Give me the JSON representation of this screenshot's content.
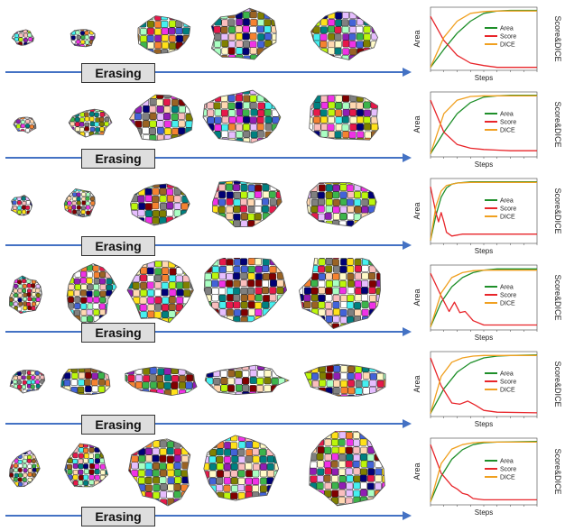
{
  "label_text": "Erasing",
  "colors": {
    "area": "#1f8f2a",
    "score": "#e8252a",
    "dice": "#f0a020",
    "arrow": "#4472c4",
    "blob_palette": [
      "#e6194b",
      "#3cb44b",
      "#ffe119",
      "#4363d8",
      "#f58231",
      "#911eb4",
      "#46f0f0",
      "#f032e6",
      "#bcf60c",
      "#fabebe",
      "#008080",
      "#e6beff",
      "#9a6324",
      "#fffac8",
      "#800000",
      "#aaffc3",
      "#808000",
      "#ffd8b1",
      "#000075",
      "#808080",
      "#ffffff"
    ]
  },
  "chart_labels": {
    "xlabel": "Steps",
    "ylabel_left": "Area",
    "ylabel_right": "Score&DICE",
    "legend": [
      "Area",
      "Score",
      "DICE"
    ]
  },
  "chart_data": [
    {
      "type": "line",
      "xlabel": "Steps",
      "ylabel": "Area",
      "y2label": "Score&DICE",
      "xlim": [
        0,
        2000
      ],
      "y2lim": [
        0,
        1
      ],
      "legend_position": "center-right",
      "series": [
        {
          "name": "Area",
          "x": [
            0,
            250,
            500,
            750,
            1000,
            1250,
            1500,
            2000
          ],
          "values": [
            0.05,
            0.35,
            0.62,
            0.82,
            0.95,
            0.99,
            1.0,
            1.0
          ]
        },
        {
          "name": "Score",
          "x": [
            0,
            250,
            500,
            750,
            1000,
            1250,
            1500,
            2000
          ],
          "values": [
            0.9,
            0.5,
            0.25,
            0.12,
            0.08,
            0.05,
            0.05,
            0.05
          ]
        },
        {
          "name": "DICE",
          "x": [
            0,
            250,
            500,
            750,
            1000,
            1250,
            1500,
            2000
          ],
          "values": [
            0.05,
            0.55,
            0.82,
            0.95,
            0.98,
            0.99,
            0.99,
            0.99
          ]
        }
      ]
    },
    {
      "type": "line",
      "xlabel": "Steps",
      "ylabel": "Area",
      "y2label": "Score&DICE",
      "xlim": [
        0,
        2000
      ],
      "y2lim": [
        0,
        1
      ],
      "legend_position": "center-right",
      "series": [
        {
          "name": "Area",
          "x": [
            0,
            250,
            500,
            750,
            1000,
            1250,
            1500,
            2000
          ],
          "values": [
            0.05,
            0.4,
            0.7,
            0.88,
            0.97,
            0.99,
            1.0,
            1.0
          ]
        },
        {
          "name": "Score",
          "x": [
            0,
            250,
            500,
            750,
            1000,
            1250,
            1500,
            2000
          ],
          "values": [
            0.92,
            0.4,
            0.2,
            0.14,
            0.12,
            0.11,
            0.1,
            0.1
          ]
        },
        {
          "name": "DICE",
          "x": [
            0,
            250,
            500,
            750,
            1000,
            1250,
            1500,
            2000
          ],
          "values": [
            0.05,
            0.7,
            0.92,
            0.98,
            0.99,
            0.99,
            0.99,
            0.99
          ]
        }
      ]
    },
    {
      "type": "line",
      "xlabel": "Steps",
      "ylabel": "Area",
      "y2label": "Score&DICE",
      "xlim": [
        0,
        2000
      ],
      "y2lim": [
        0,
        1
      ],
      "legend_position": "center-right",
      "series": [
        {
          "name": "Area",
          "x": [
            0,
            100,
            200,
            300,
            400,
            500,
            750,
            1000,
            2000
          ],
          "values": [
            0.05,
            0.45,
            0.75,
            0.9,
            0.96,
            0.98,
            1.0,
            1.0,
            1.0
          ]
        },
        {
          "name": "Score",
          "x": [
            0,
            100,
            150,
            200,
            250,
            300,
            400,
            600,
            800,
            2000
          ],
          "values": [
            0.92,
            0.5,
            0.35,
            0.5,
            0.35,
            0.18,
            0.12,
            0.15,
            0.15,
            0.15
          ]
        },
        {
          "name": "DICE",
          "x": [
            0,
            100,
            200,
            300,
            500,
            750,
            1000,
            2000
          ],
          "values": [
            0.05,
            0.6,
            0.85,
            0.94,
            0.98,
            0.99,
            0.99,
            0.99
          ]
        }
      ]
    },
    {
      "type": "line",
      "xlabel": "Steps",
      "ylabel": "Area",
      "y2label": "Score&DICE",
      "xlim": [
        0,
        2000
      ],
      "y2lim": [
        0,
        1
      ],
      "legend_position": "center-right",
      "series": [
        {
          "name": "Area",
          "x": [
            0,
            200,
            400,
            600,
            800,
            1000,
            1250,
            2000
          ],
          "values": [
            0.05,
            0.45,
            0.7,
            0.85,
            0.93,
            0.97,
            0.99,
            0.99
          ]
        },
        {
          "name": "Score",
          "x": [
            0,
            200,
            350,
            450,
            550,
            650,
            800,
            1000,
            2000
          ],
          "values": [
            0.92,
            0.55,
            0.3,
            0.45,
            0.28,
            0.3,
            0.15,
            0.08,
            0.08
          ]
        },
        {
          "name": "DICE",
          "x": [
            0,
            200,
            400,
            600,
            800,
            1000,
            2000
          ],
          "values": [
            0.05,
            0.6,
            0.85,
            0.93,
            0.96,
            0.97,
            0.97
          ]
        }
      ]
    },
    {
      "type": "line",
      "xlabel": "Steps",
      "ylabel": "Area",
      "y2label": "Score&DICE",
      "xlim": [
        0,
        2000
      ],
      "y2lim": [
        0,
        1
      ],
      "legend_position": "center-right",
      "series": [
        {
          "name": "Area",
          "x": [
            0,
            250,
            500,
            750,
            1000,
            1250,
            1500,
            2000
          ],
          "values": [
            0.05,
            0.45,
            0.72,
            0.87,
            0.95,
            0.98,
            0.99,
            1.0
          ]
        },
        {
          "name": "Score",
          "x": [
            0,
            200,
            400,
            550,
            700,
            850,
            1000,
            1250,
            2000
          ],
          "values": [
            0.95,
            0.5,
            0.22,
            0.2,
            0.25,
            0.18,
            0.1,
            0.07,
            0.06
          ]
        },
        {
          "name": "DICE",
          "x": [
            0,
            200,
            400,
            600,
            800,
            1000,
            2000
          ],
          "values": [
            0.05,
            0.65,
            0.88,
            0.95,
            0.98,
            0.99,
            0.99
          ]
        }
      ]
    },
    {
      "type": "line",
      "xlabel": "Steps",
      "ylabel": "Area",
      "y2label": "Score&DICE",
      "xlim": [
        0,
        2000
      ],
      "y2lim": [
        0,
        1
      ],
      "legend_position": "center-right",
      "series": [
        {
          "name": "Area",
          "x": [
            0,
            200,
            400,
            600,
            800,
            1000,
            1250,
            2000
          ],
          "values": [
            0.05,
            0.45,
            0.72,
            0.87,
            0.95,
            0.98,
            0.99,
            1.0
          ]
        },
        {
          "name": "Score",
          "x": [
            0,
            200,
            400,
            500,
            600,
            700,
            800,
            1000,
            2000
          ],
          "values": [
            0.95,
            0.5,
            0.3,
            0.25,
            0.18,
            0.16,
            0.1,
            0.08,
            0.08
          ]
        },
        {
          "name": "DICE",
          "x": [
            0,
            200,
            400,
            600,
            800,
            1000,
            2000
          ],
          "values": [
            0.05,
            0.65,
            0.88,
            0.95,
            0.98,
            0.99,
            0.99
          ]
        }
      ]
    }
  ]
}
